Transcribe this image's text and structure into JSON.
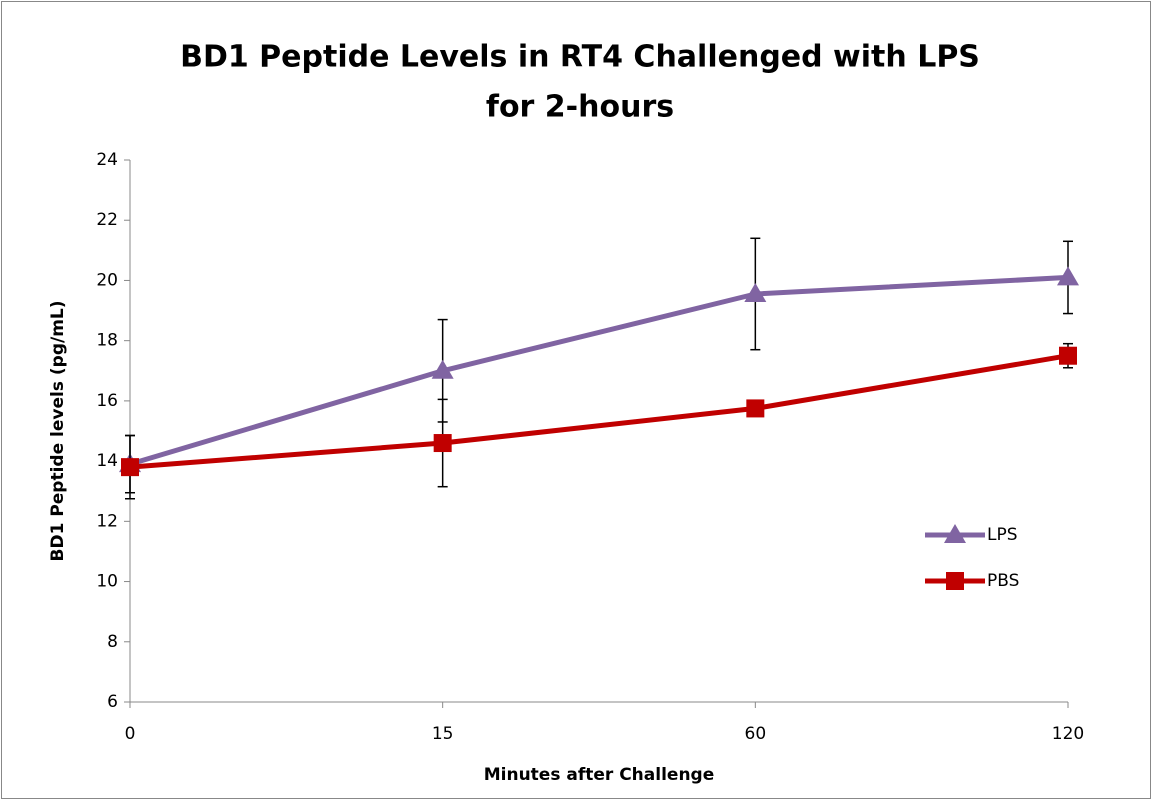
{
  "chart_data": {
    "type": "line",
    "title": [
      "BD1 Peptide Levels in RT4 Challenged with LPS",
      "for 2-hours"
    ],
    "x_label": "Minutes after Challenge",
    "y_label": "BD1 Peptide levels (pg/mL)",
    "categories": [
      "0",
      "15",
      "60",
      "120"
    ],
    "series": [
      {
        "name": "LPS",
        "color": "#8064a2",
        "marker": "triangle",
        "values": [
          13.9,
          17.0,
          19.55,
          20.1
        ],
        "error": [
          0.95,
          1.7,
          1.85,
          1.2
        ]
      },
      {
        "name": "PBS",
        "color": "#c00000",
        "marker": "square",
        "values": [
          13.8,
          14.6,
          15.75,
          17.5
        ],
        "error": [
          1.05,
          1.45,
          0.2,
          0.4
        ]
      }
    ],
    "ylim": [
      6,
      24
    ],
    "yticks": [
      6,
      8,
      10,
      12,
      14,
      16,
      18,
      20,
      22,
      24
    ],
    "legend": "right"
  }
}
